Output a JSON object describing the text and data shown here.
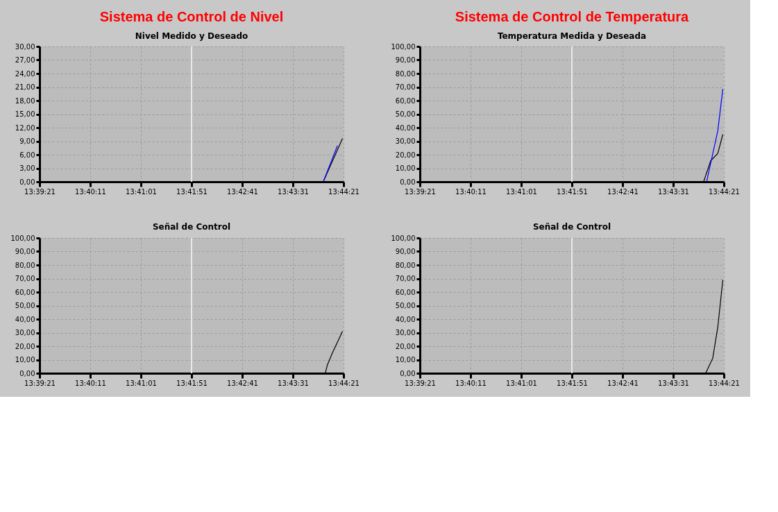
{
  "chart_data": [
    {
      "type": "line",
      "title": "Sistema de Control de Nivel",
      "subtitle": "Nivel Medido y Deseado",
      "grid": true,
      "legend": false,
      "series": [
        {
          "color": "#000000",
          "x": [
            13.73361,
            13.73889
          ],
          "values": [
            0,
            9.6
          ]
        },
        {
          "color": "#0000ff",
          "x": [
            13.73361,
            13.7375
          ],
          "values": [
            0,
            8.0
          ]
        }
      ],
      "xlim": [
        13.65583,
        13.73917
      ],
      "xticks": [
        {
          "value": 13.65583,
          "label": "13:39:21"
        },
        {
          "value": 13.66972,
          "label": "13:40:11"
        },
        {
          "value": 13.68361,
          "label": "13:41:01"
        },
        {
          "value": 13.6975,
          "label": "13:41:51"
        },
        {
          "value": 13.71139,
          "label": "13:42:41"
        },
        {
          "value": 13.72528,
          "label": "13:43:31"
        },
        {
          "value": 13.73917,
          "label": "13:44:21"
        }
      ],
      "ylim": [
        0,
        30
      ],
      "yticks": [
        {
          "value": 0,
          "label": "0,00"
        },
        {
          "value": 3,
          "label": "3,00"
        },
        {
          "value": 6,
          "label": "6,00"
        },
        {
          "value": 9,
          "label": "9,00"
        },
        {
          "value": 12,
          "label": "12,00"
        },
        {
          "value": 15,
          "label": "15,00"
        },
        {
          "value": 18,
          "label": "18,00"
        },
        {
          "value": 21,
          "label": "21,00"
        },
        {
          "value": 24,
          "label": "24,00"
        },
        {
          "value": 27,
          "label": "27,00"
        },
        {
          "value": 30,
          "label": "30,00"
        }
      ],
      "ref_lines": [
        {
          "axis": "x",
          "value": 13.6975,
          "color": "#e8e8e8"
        }
      ]
    },
    {
      "type": "line",
      "title": "Sistema de Control de Temperatura",
      "subtitle": "Temperatura Medida y Deseada",
      "grid": true,
      "legend": false,
      "series": [
        {
          "color": "#000000",
          "x": [
            13.73361,
            13.73556,
            13.7375,
            13.73889
          ],
          "values": [
            0,
            15.5,
            21,
            35
          ]
        },
        {
          "color": "#0000ff",
          "x": [
            13.73444,
            13.7375,
            13.73889
          ],
          "values": [
            0,
            37.6,
            68.5
          ]
        }
      ],
      "xlim": [
        13.65583,
        13.73917
      ],
      "xticks": [
        {
          "value": 13.65583,
          "label": "13:39:21"
        },
        {
          "value": 13.66972,
          "label": "13:40:11"
        },
        {
          "value": 13.68361,
          "label": "13:41:01"
        },
        {
          "value": 13.6975,
          "label": "13:41:51"
        },
        {
          "value": 13.71139,
          "label": "13:42:41"
        },
        {
          "value": 13.72528,
          "label": "13:43:31"
        },
        {
          "value": 13.73917,
          "label": "13:44:21"
        }
      ],
      "ylim": [
        0,
        100
      ],
      "yticks": [
        {
          "value": 0,
          "label": "0,00"
        },
        {
          "value": 10,
          "label": "10,00"
        },
        {
          "value": 20,
          "label": "20,00"
        },
        {
          "value": 30,
          "label": "30,00"
        },
        {
          "value": 40,
          "label": "40,00"
        },
        {
          "value": 50,
          "label": "50,00"
        },
        {
          "value": 60,
          "label": "60,00"
        },
        {
          "value": 70,
          "label": "70,00"
        },
        {
          "value": 80,
          "label": "80,00"
        },
        {
          "value": 90,
          "label": "90,00"
        },
        {
          "value": 100,
          "label": "100,00"
        }
      ],
      "ref_lines": [
        {
          "axis": "x",
          "value": 13.6975,
          "color": "#e8e8e8"
        }
      ]
    },
    {
      "type": "line",
      "subtitle": "Señal de Control",
      "grid": true,
      "legend": false,
      "series": [
        {
          "color": "#000000",
          "x": [
            13.73417,
            13.73472,
            13.73611,
            13.73889
          ],
          "values": [
            0,
            6,
            15,
            31
          ]
        }
      ],
      "xlim": [
        13.65583,
        13.73917
      ],
      "xticks": [
        {
          "value": 13.65583,
          "label": "13:39:21"
        },
        {
          "value": 13.66972,
          "label": "13:40:11"
        },
        {
          "value": 13.68361,
          "label": "13:41:01"
        },
        {
          "value": 13.6975,
          "label": "13:41:51"
        },
        {
          "value": 13.71139,
          "label": "13:42:41"
        },
        {
          "value": 13.72528,
          "label": "13:43:31"
        },
        {
          "value": 13.73917,
          "label": "13:44:21"
        }
      ],
      "ylim": [
        0,
        100
      ],
      "yticks": [
        {
          "value": 0,
          "label": "0,00"
        },
        {
          "value": 10,
          "label": "10,00"
        },
        {
          "value": 20,
          "label": "20,00"
        },
        {
          "value": 30,
          "label": "30,00"
        },
        {
          "value": 40,
          "label": "40,00"
        },
        {
          "value": 50,
          "label": "50,00"
        },
        {
          "value": 60,
          "label": "60,00"
        },
        {
          "value": 70,
          "label": "70,00"
        },
        {
          "value": 80,
          "label": "80,00"
        },
        {
          "value": 90,
          "label": "90,00"
        },
        {
          "value": 100,
          "label": "100,00"
        }
      ],
      "ref_lines": [
        {
          "axis": "x",
          "value": 13.6975,
          "color": "#e8e8e8"
        }
      ]
    },
    {
      "type": "line",
      "subtitle": "Señal de Control",
      "grid": true,
      "legend": false,
      "series": [
        {
          "color": "#000000",
          "x": [
            13.73417,
            13.73611,
            13.7375,
            13.73833,
            13.73889
          ],
          "values": [
            0,
            11,
            34,
            55,
            69
          ]
        }
      ],
      "xlim": [
        13.65583,
        13.73917
      ],
      "xticks": [
        {
          "value": 13.65583,
          "label": "13:39:21"
        },
        {
          "value": 13.66972,
          "label": "13:40:11"
        },
        {
          "value": 13.68361,
          "label": "13:41:01"
        },
        {
          "value": 13.6975,
          "label": "13:41:51"
        },
        {
          "value": 13.71139,
          "label": "13:42:41"
        },
        {
          "value": 13.72528,
          "label": "13:43:31"
        },
        {
          "value": 13.73917,
          "label": "13:44:21"
        }
      ],
      "ylim": [
        0,
        100
      ],
      "yticks": [
        {
          "value": 0,
          "label": "0,00"
        },
        {
          "value": 10,
          "label": "10,00"
        },
        {
          "value": 20,
          "label": "20,00"
        },
        {
          "value": 30,
          "label": "30,00"
        },
        {
          "value": 40,
          "label": "40,00"
        },
        {
          "value": 50,
          "label": "50,00"
        },
        {
          "value": 60,
          "label": "60,00"
        },
        {
          "value": 70,
          "label": "70,00"
        },
        {
          "value": 80,
          "label": "80,00"
        },
        {
          "value": 90,
          "label": "90,00"
        },
        {
          "value": 100,
          "label": "100,00"
        }
      ],
      "ref_lines": [
        {
          "axis": "x",
          "value": 13.6975,
          "color": "#e8e8e8"
        }
      ]
    }
  ]
}
